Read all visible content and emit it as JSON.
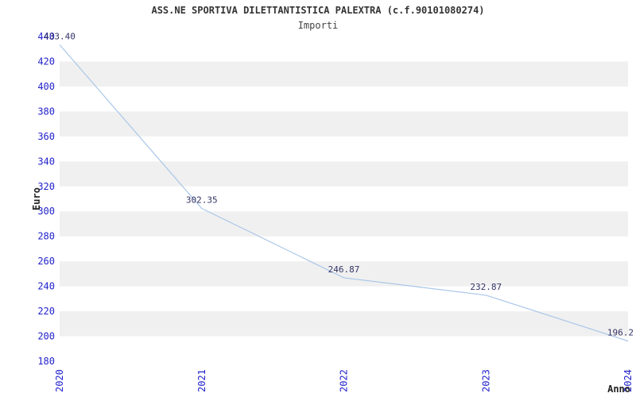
{
  "colors": {
    "band": "#f0f0f0",
    "tick_label": "#2222cc",
    "point_label": "#333366",
    "axis_title": "#222222",
    "line": "#a9c6e8",
    "title": "#333333",
    "subtitle": "#444444"
  },
  "chart_data": {
    "type": "line",
    "title": "ASS.NE SPORTIVA DILETTANTISTICA PALEXTRA (c.f.90101080274)",
    "subtitle": "Importi",
    "x": [
      "2020",
      "2021",
      "2022",
      "2023",
      "2024"
    ],
    "values": [
      433.4,
      302.35,
      246.87,
      232.87,
      196.2
    ],
    "point_labels": [
      "433.40",
      "302.35",
      "246.87",
      "232.87",
      "196.2"
    ],
    "xlabel": "Anno",
    "ylabel": "Euro",
    "ylim": [
      180,
      440
    ],
    "ytick_step": 20,
    "grid": "alternating-horizontal-bands",
    "legend": "none"
  }
}
